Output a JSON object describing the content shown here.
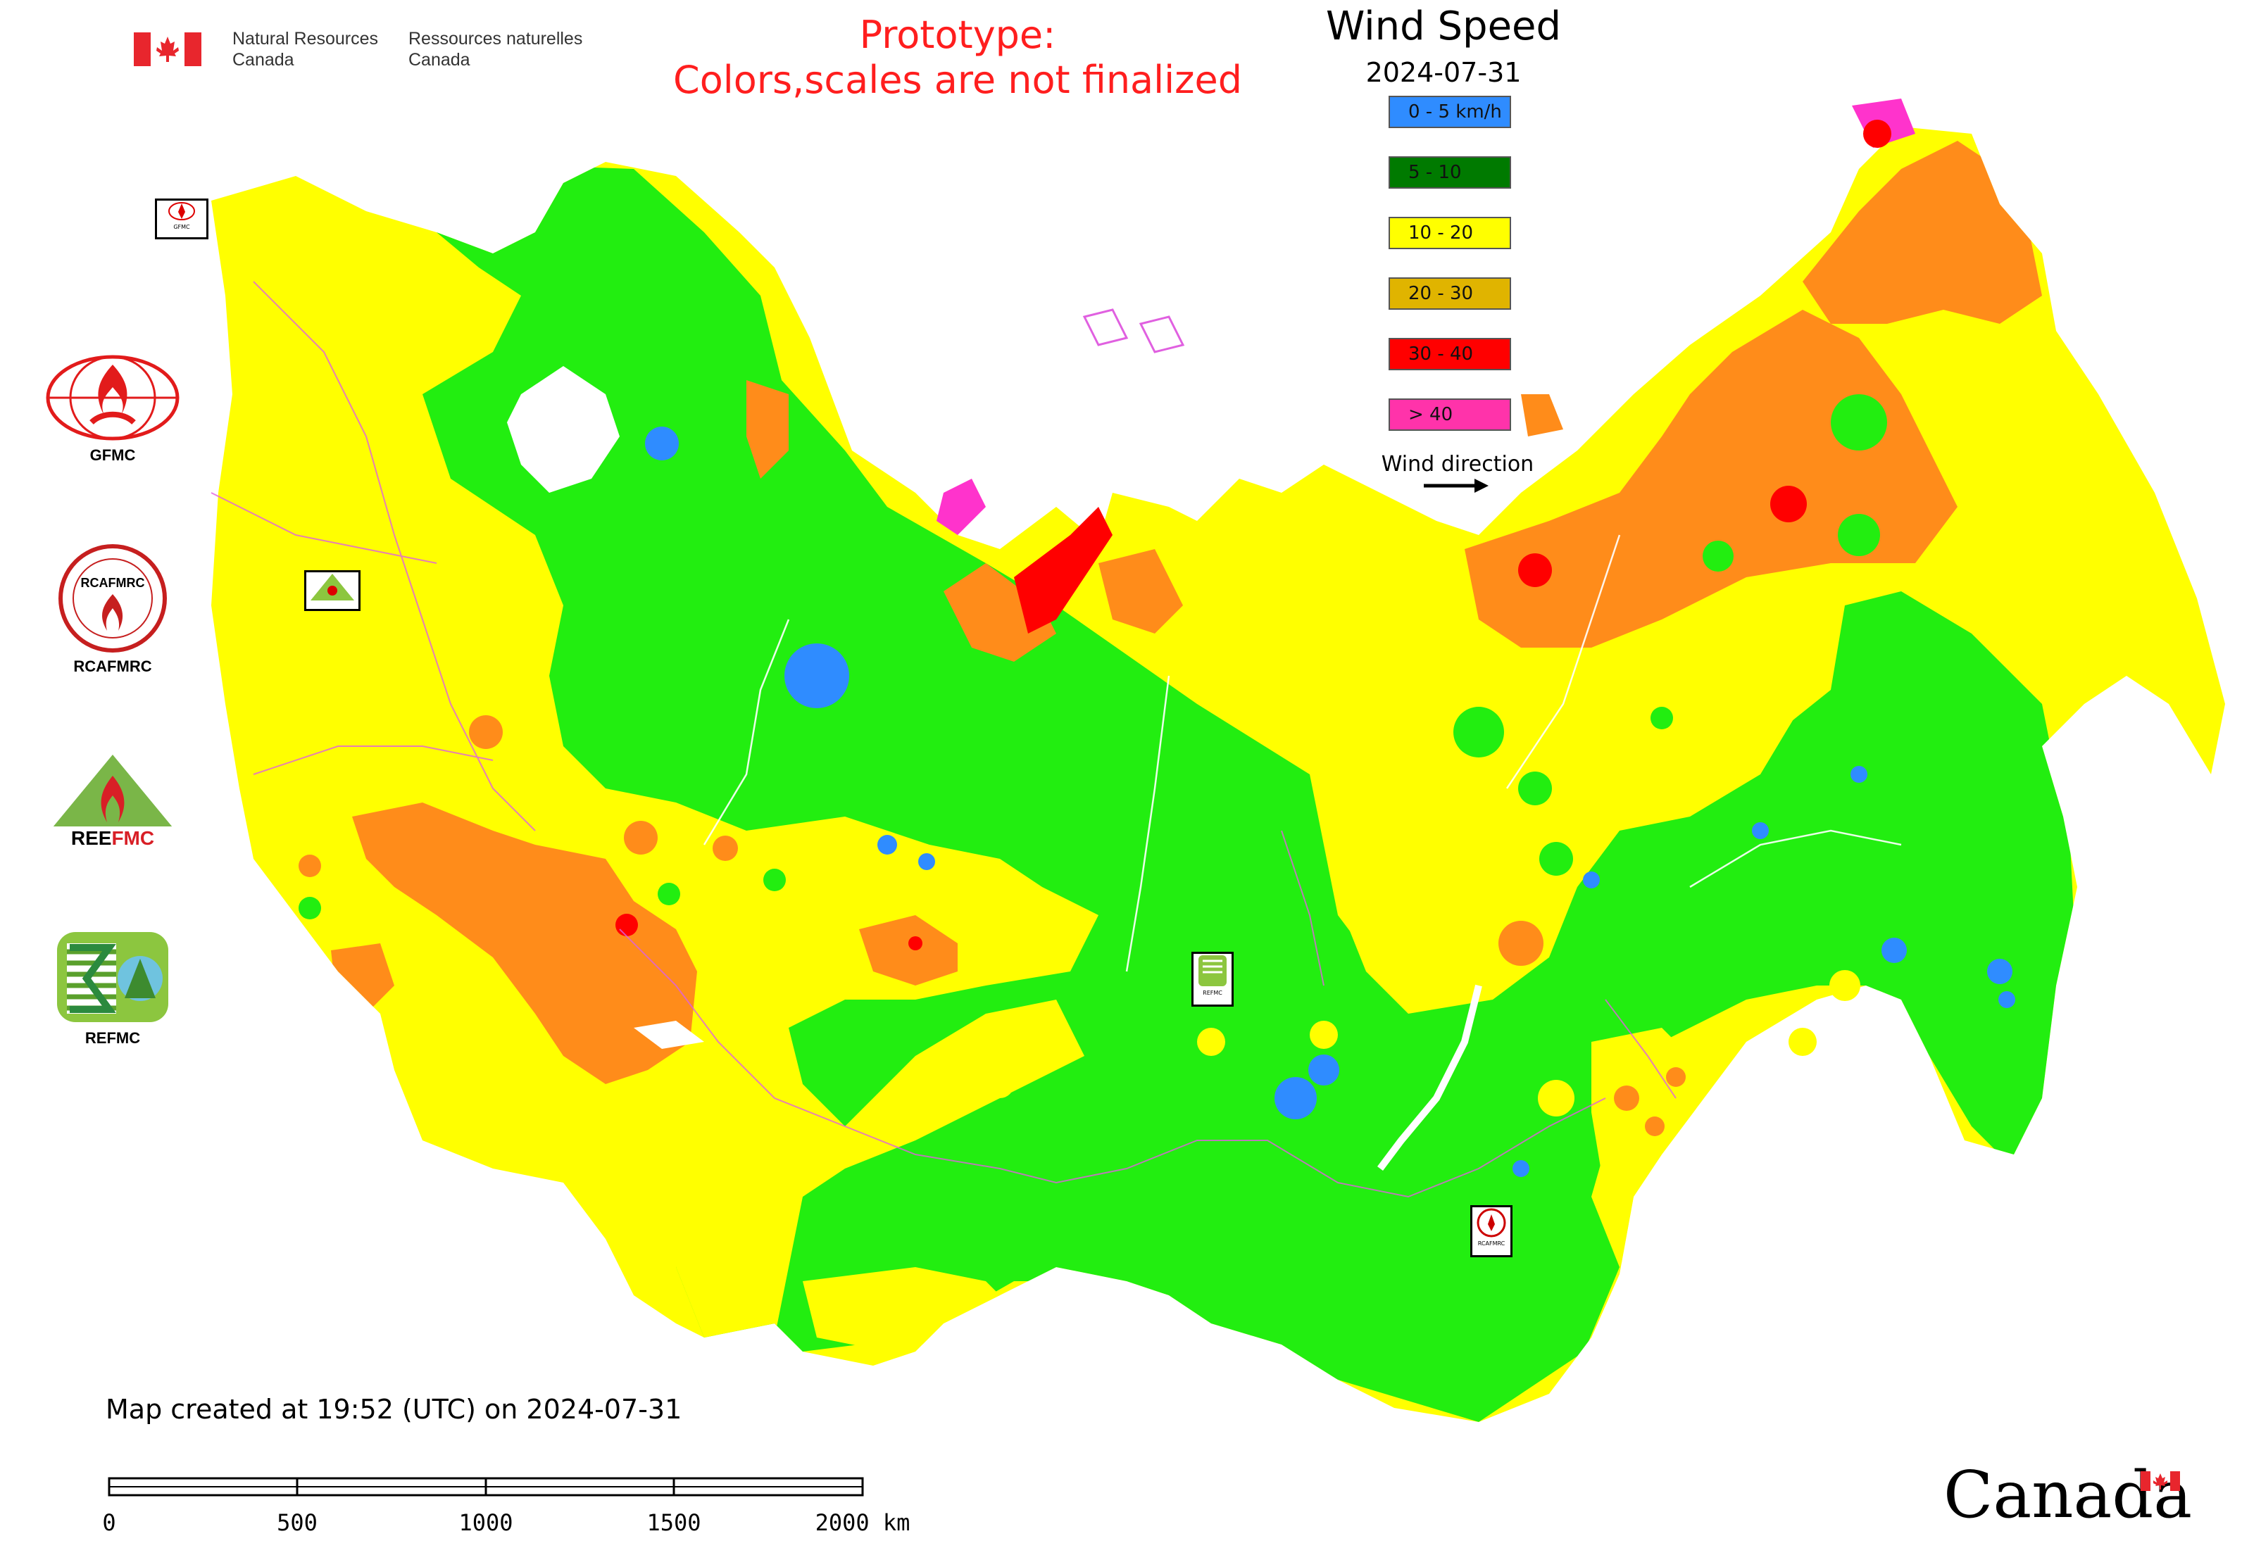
{
  "header": {
    "agency_en": [
      "Natural Resources",
      "Canada"
    ],
    "agency_fr": [
      "Ressources naturelles",
      "Canada"
    ],
    "flag_icon": "canada-flag-icon"
  },
  "prototype_note": [
    "Prototype:",
    "Colors,scales are not finalized"
  ],
  "map": {
    "title": "Wind Speed",
    "date": "2024-07-31",
    "colors": {
      "calm": "#2f8cff",
      "low": "#22ee10",
      "mid": "#ffff00",
      "high": "#ff8c1a",
      "very_high": "#ff0000",
      "extreme": "#ff33cc",
      "border": "#e060e0",
      "water": "#ffffff"
    }
  },
  "legend": {
    "items": [
      {
        "label": "0 - 5 km/h",
        "color": "#2f8cff"
      },
      {
        "label": "5 - 10",
        "color": "#007a00"
      },
      {
        "label": "10 - 20",
        "color": "#ffff00"
      },
      {
        "label": "20 - 30",
        "color": "#e0b400"
      },
      {
        "label": "30 - 40",
        "color": "#ff0000"
      },
      {
        "label": "> 40",
        "color": "#ff33aa"
      }
    ],
    "wind_direction_label": "Wind direction"
  },
  "partners": [
    {
      "label": "GFMC",
      "icon": "gfmc-logo-icon"
    },
    {
      "label": "RCAFMRC",
      "icon": "rcafmrc-logo-icon"
    },
    {
      "label": "REEFMC",
      "icon": "reefmc-logo-icon"
    },
    {
      "label": "REFMC",
      "icon": "refmc-logo-icon"
    }
  ],
  "map_markers": {
    "gfmc": "GFMC",
    "reefmc": "REEFMC",
    "refmc": "REFMC",
    "rcafmrc": "RCAFMRC"
  },
  "footer": {
    "created": "Map created at 19:52 (UTC) on 2024-07-31",
    "scale_labels": [
      "0",
      "500",
      "1000",
      "1500",
      "2000 km"
    ],
    "wordmark": "Canada"
  }
}
